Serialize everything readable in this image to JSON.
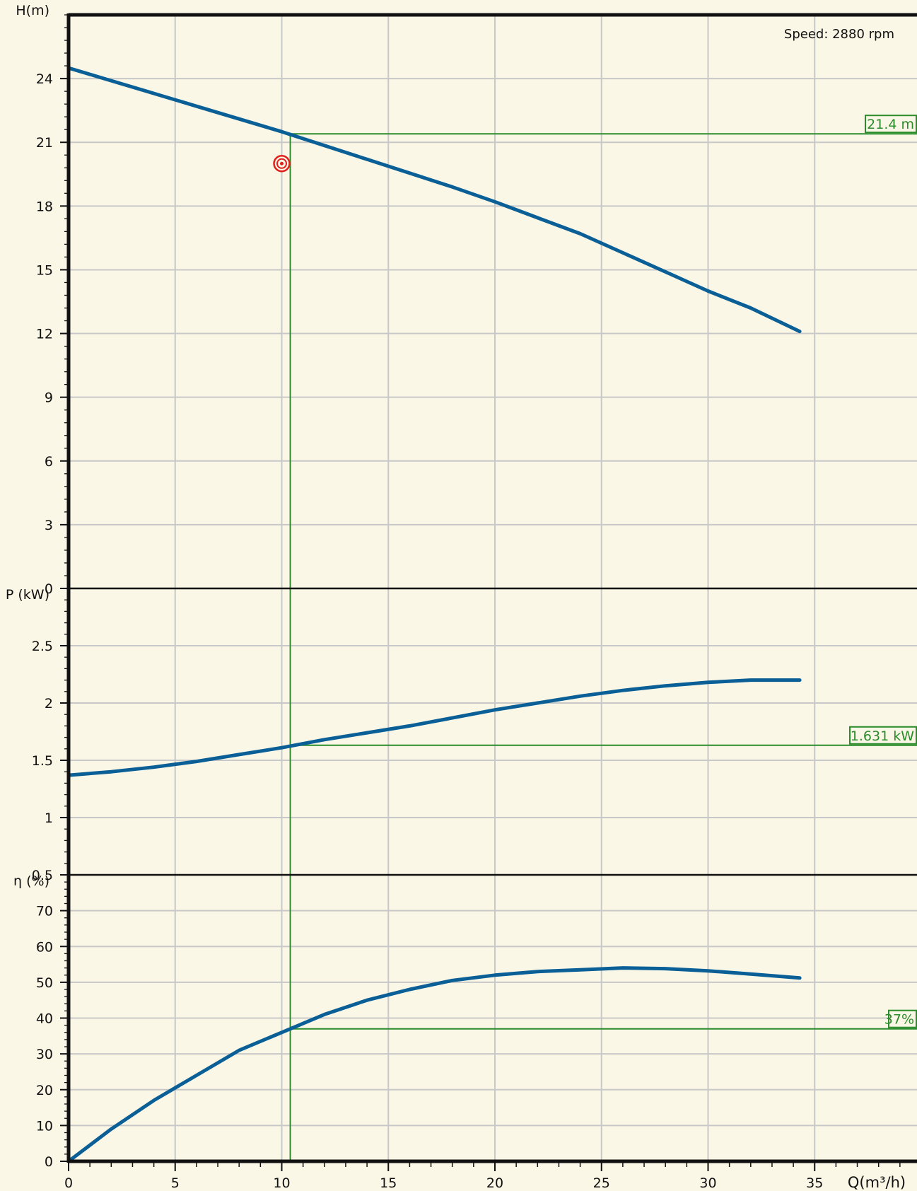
{
  "speed_label": "Speed: 2880 rpm",
  "x_axis": {
    "label": "Q(m³/h)",
    "range": [
      0,
      40
    ],
    "ticks": [
      0,
      5,
      10,
      15,
      20,
      25,
      30,
      35
    ],
    "tick_labels": [
      "0",
      "5",
      "10",
      "15",
      "20",
      "25",
      "30",
      "35"
    ]
  },
  "chart_data": [
    {
      "type": "line",
      "ylabel": "H(m)",
      "ylim": [
        0,
        27
      ],
      "yticks": [
        0,
        3,
        6,
        9,
        12,
        15,
        18,
        21,
        24
      ],
      "ytick_labels": [
        "0",
        "3",
        "6",
        "9",
        "12",
        "15",
        "18",
        "21",
        "24"
      ],
      "grid": true,
      "series": [
        {
          "x": [
            0,
            2,
            4,
            6,
            8,
            10,
            12,
            14,
            16,
            18,
            20,
            22,
            24,
            26,
            28,
            30,
            32,
            34.3
          ],
          "y": [
            24.5,
            23.9,
            23.3,
            22.7,
            22.1,
            21.5,
            20.85,
            20.2,
            19.55,
            18.9,
            18.2,
            17.45,
            16.7,
            15.8,
            14.9,
            14.0,
            13.2,
            12.1
          ],
          "color": "#0a5f97"
        }
      ],
      "operating_point": {
        "x": 10,
        "y": 20.0,
        "color": "#e0201c"
      },
      "reading": {
        "x": 10.4,
        "y": 21.4,
        "label": "21.4 m"
      }
    },
    {
      "type": "line",
      "ylabel": "P (kW)",
      "ylim": [
        0.5,
        3
      ],
      "yticks": [
        0.5,
        1,
        1.5,
        2,
        2.5
      ],
      "ytick_labels": [
        "0.5",
        "1",
        "1.5",
        "2",
        "2.5"
      ],
      "grid": true,
      "series": [
        {
          "x": [
            0,
            2,
            4,
            6,
            8,
            10,
            12,
            14,
            16,
            18,
            20,
            22,
            24,
            26,
            28,
            30,
            32,
            34.3
          ],
          "y": [
            1.37,
            1.4,
            1.44,
            1.49,
            1.55,
            1.61,
            1.68,
            1.74,
            1.8,
            1.87,
            1.94,
            2.0,
            2.06,
            2.11,
            2.15,
            2.18,
            2.2,
            2.2
          ],
          "color": "#0a5f97"
        }
      ],
      "reading": {
        "x": 10.4,
        "y": 1.631,
        "label": "1.631 kW"
      }
    },
    {
      "type": "line",
      "ylabel": "η (%)",
      "ylim": [
        0,
        80
      ],
      "yticks": [
        0,
        10,
        20,
        30,
        40,
        50,
        60,
        70
      ],
      "ytick_labels": [
        "0",
        "10",
        "20",
        "30",
        "40",
        "50",
        "60",
        "70"
      ],
      "grid": true,
      "series": [
        {
          "x": [
            0,
            2,
            4,
            6,
            8,
            10,
            12,
            14,
            16,
            18,
            20,
            22,
            24,
            26,
            28,
            30,
            32,
            34.3
          ],
          "y": [
            0,
            9,
            17,
            24,
            31,
            36,
            41,
            45,
            48,
            50.5,
            52,
            53,
            53.5,
            54,
            53.8,
            53.2,
            52.3,
            51.2
          ],
          "color": "#0a5f97"
        }
      ],
      "reading": {
        "x": 10.4,
        "y": 37,
        "label": "37%"
      }
    }
  ]
}
